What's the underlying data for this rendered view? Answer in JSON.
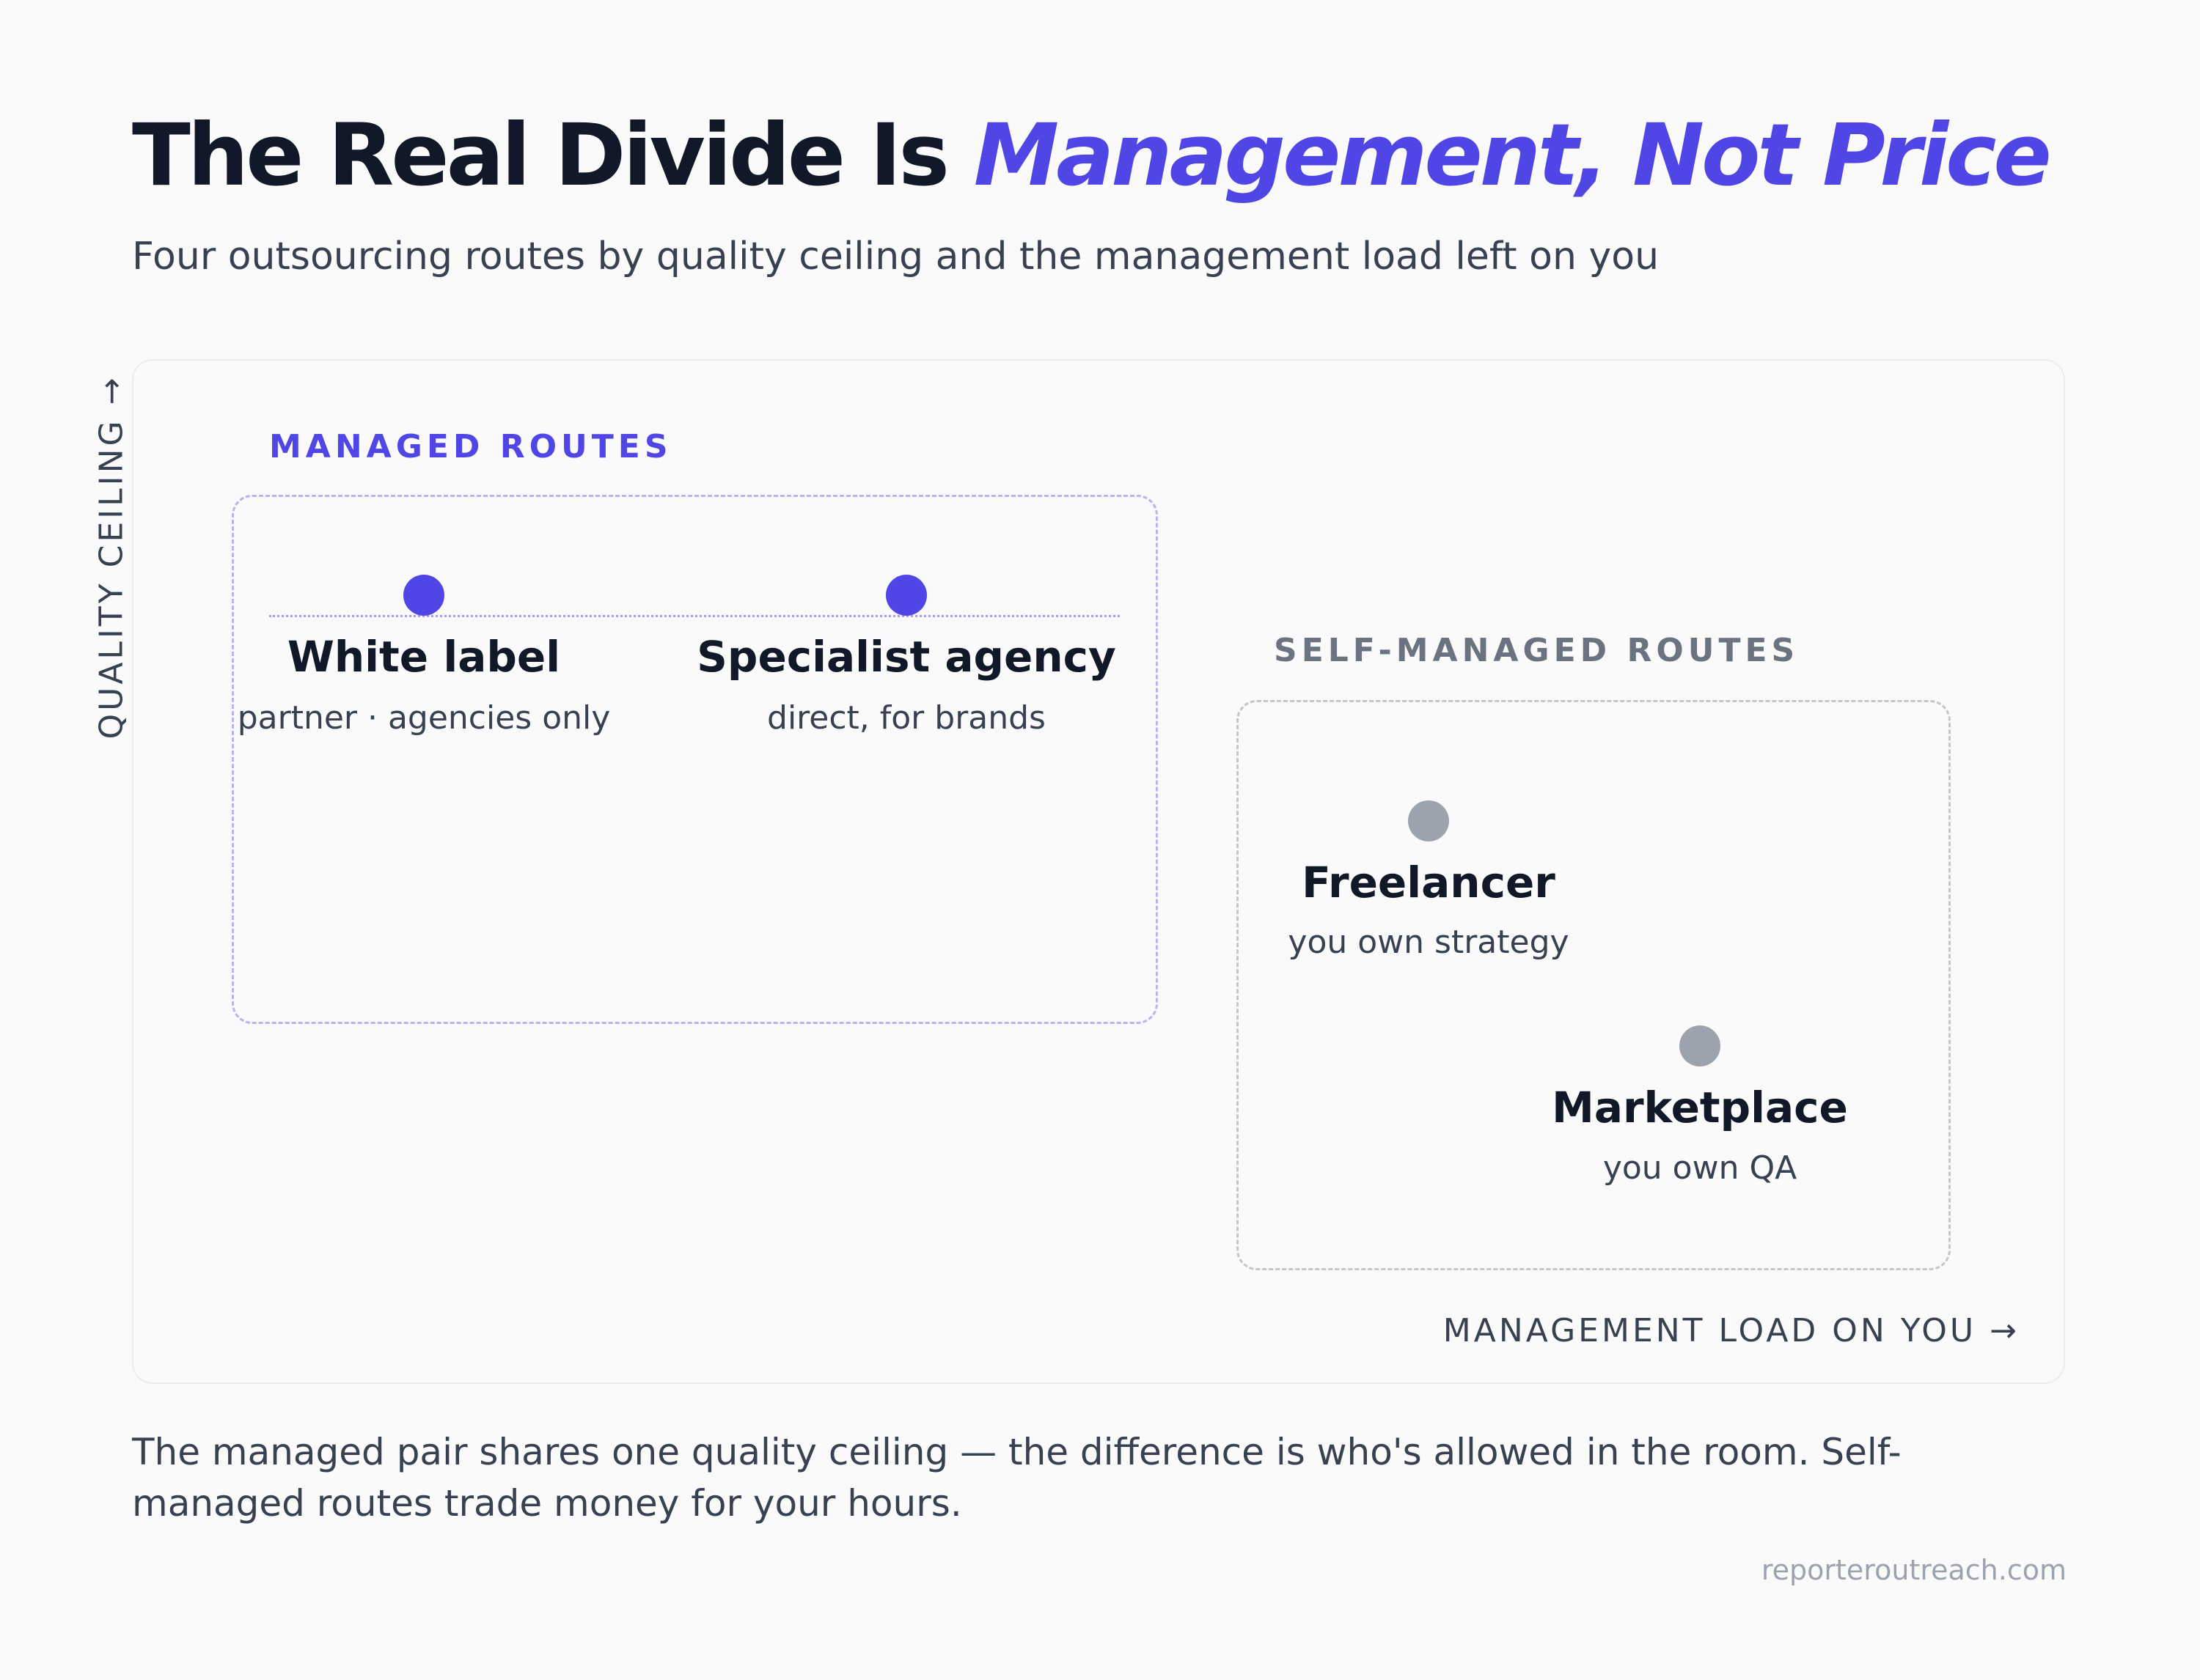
{
  "title": {
    "main": "The Real Divide Is ",
    "highlight": "Management, Not Price"
  },
  "subtitle": "Four outsourcing routes by quality ceiling and the management load left on you",
  "axes": {
    "y_label": "QUALITY CEILING →",
    "x_label": "MANAGEMENT LOAD ON YOU →"
  },
  "groups": {
    "managed": {
      "label": "MANAGED ROUTES",
      "color": "#4f46e5"
    },
    "self_managed": {
      "label": "SELF-MANAGED ROUTES",
      "color": "#9ca3af"
    }
  },
  "routes": [
    {
      "name": "White label",
      "sub": "partner · agencies only",
      "group": "managed"
    },
    {
      "name": "Specialist agency",
      "sub": "direct, for brands",
      "group": "managed"
    },
    {
      "name": "Freelancer",
      "sub": "you own strategy",
      "group": "self_managed"
    },
    {
      "name": "Marketplace",
      "sub": "you own QA",
      "group": "self_managed"
    }
  ],
  "footnote": "The managed pair shares one quality ceiling — the difference is who's allowed in the room. Self-managed routes trade money for your hours.",
  "source": "reporteroutreach.com"
}
